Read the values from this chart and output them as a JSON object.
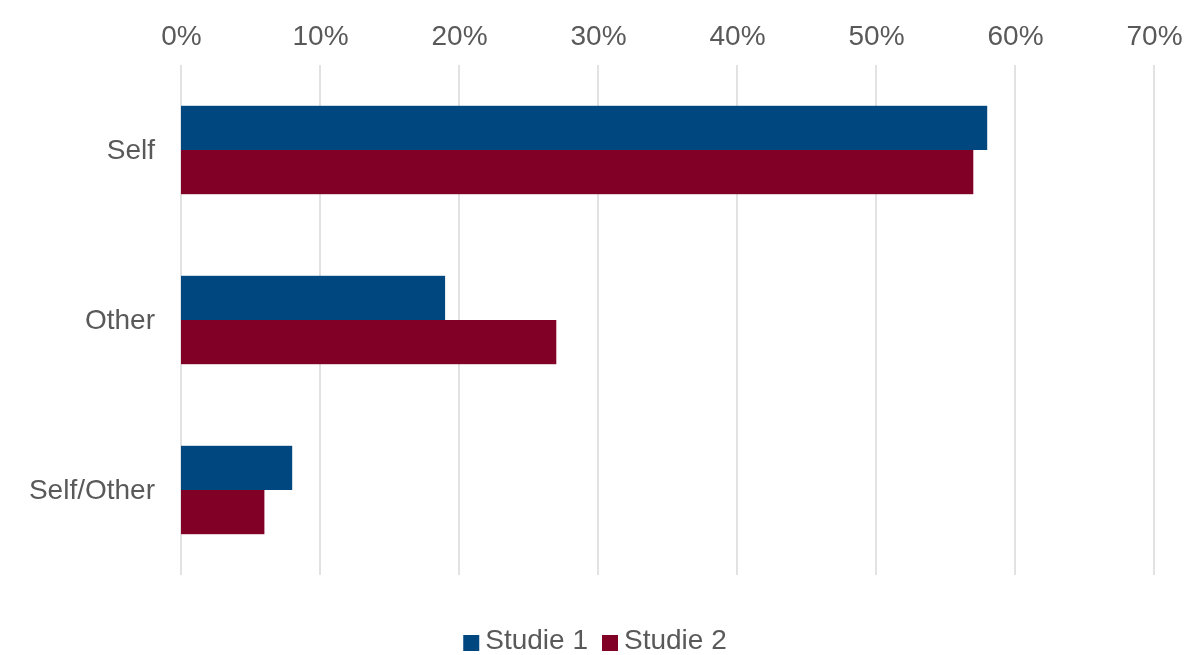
{
  "chart_data": {
    "type": "bar",
    "orientation": "horizontal",
    "categories": [
      "Self",
      "Other",
      "Self/Other"
    ],
    "series": [
      {
        "name": "Studie 1",
        "color": "#00467f",
        "values": [
          58,
          19,
          8
        ]
      },
      {
        "name": "Studie 2",
        "color": "#800026",
        "values": [
          57,
          27,
          6
        ]
      }
    ],
    "xlim": [
      0,
      70
    ],
    "xticks": [
      {
        "value": 0,
        "label": "0%"
      },
      {
        "value": 10,
        "label": "10%"
      },
      {
        "value": 20,
        "label": "20%"
      },
      {
        "value": 30,
        "label": "30%"
      },
      {
        "value": 40,
        "label": "40%"
      },
      {
        "value": 50,
        "label": "50%"
      },
      {
        "value": 60,
        "label": "60%"
      },
      {
        "value": 70,
        "label": "70%"
      }
    ],
    "grid": "x",
    "legend": "bottom"
  }
}
